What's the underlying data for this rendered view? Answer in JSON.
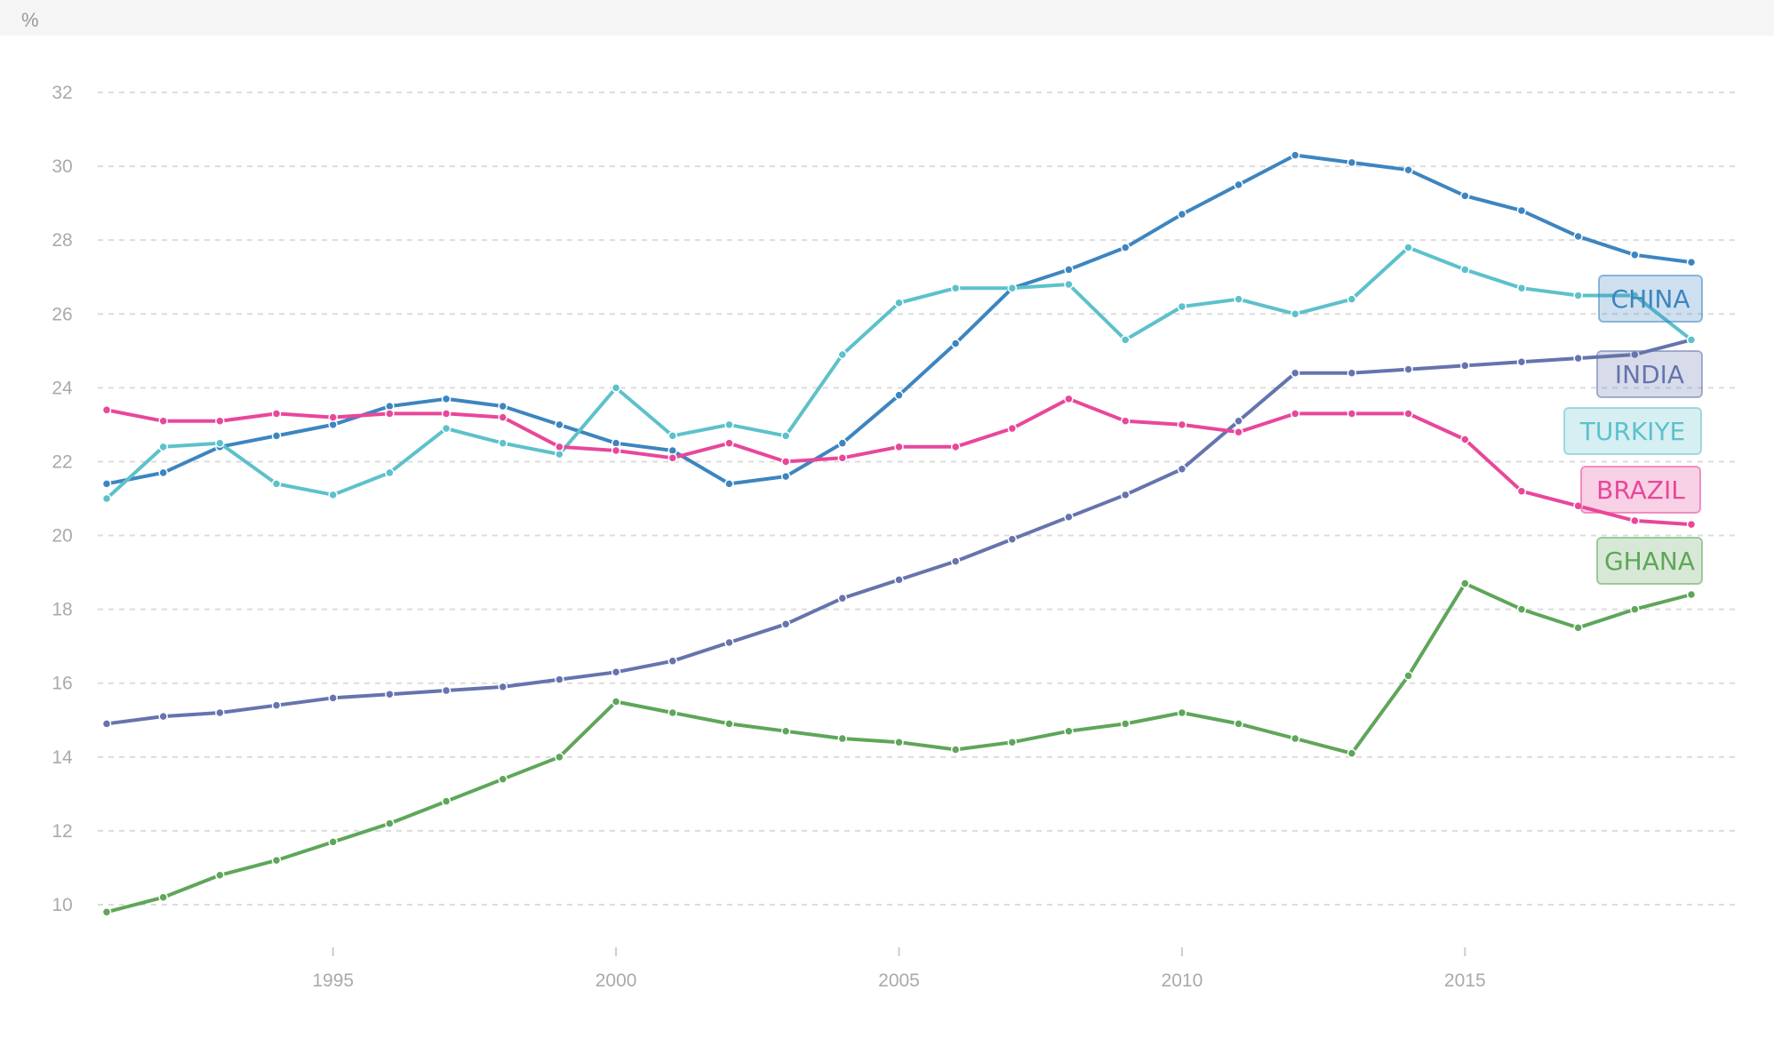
{
  "chart_data": {
    "type": "line",
    "title": "",
    "xlabel": "",
    "ylabel": "%",
    "xlim": [
      1991,
      2019
    ],
    "ylim": [
      9,
      33
    ],
    "x_ticks": [
      1995,
      2000,
      2005,
      2010,
      2015
    ],
    "y_ticks": [
      10,
      12,
      14,
      16,
      18,
      20,
      22,
      24,
      26,
      28,
      30,
      32
    ],
    "grid": true,
    "legend_position": "right",
    "x": [
      1991,
      1992,
      1993,
      1994,
      1995,
      1996,
      1997,
      1998,
      1999,
      2000,
      2001,
      2002,
      2003,
      2004,
      2005,
      2006,
      2007,
      2008,
      2009,
      2010,
      2011,
      2012,
      2013,
      2014,
      2015,
      2016,
      2017,
      2018,
      2019
    ],
    "series": [
      {
        "name": "CHINA",
        "color": "#3d85c0",
        "values": [
          21.4,
          21.7,
          22.4,
          22.7,
          23.0,
          23.5,
          23.7,
          23.5,
          23.0,
          22.5,
          22.3,
          21.4,
          21.6,
          22.5,
          23.8,
          25.2,
          26.7,
          27.2,
          27.8,
          28.7,
          29.5,
          30.3,
          30.1,
          29.9,
          29.2,
          28.8,
          28.1,
          27.6,
          27.4
        ]
      },
      {
        "name": "INDIA",
        "color": "#6574ad",
        "values": [
          14.9,
          15.1,
          15.2,
          15.4,
          15.6,
          15.7,
          15.8,
          15.9,
          16.1,
          16.3,
          16.6,
          17.1,
          17.6,
          18.3,
          18.8,
          19.3,
          19.9,
          20.5,
          21.1,
          21.8,
          23.1,
          24.4,
          24.4,
          24.5,
          24.6,
          24.7,
          24.8,
          24.9,
          25.3
        ]
      },
      {
        "name": "TURKIYE",
        "color": "#5cc1cb",
        "values": [
          21.0,
          22.4,
          22.5,
          21.4,
          21.1,
          21.7,
          22.9,
          22.5,
          22.2,
          24.0,
          22.7,
          23.0,
          22.7,
          24.9,
          26.3,
          26.7,
          26.7,
          26.8,
          25.3,
          26.2,
          26.4,
          26.0,
          26.4,
          27.8,
          27.2,
          26.7,
          26.5,
          26.5,
          25.3
        ]
      },
      {
        "name": "BRAZIL",
        "color": "#e8479a",
        "values": [
          23.4,
          23.1,
          23.1,
          23.3,
          23.2,
          23.3,
          23.3,
          23.2,
          22.4,
          22.3,
          22.1,
          22.5,
          22.0,
          22.1,
          22.4,
          22.4,
          22.9,
          23.7,
          23.1,
          23.0,
          22.8,
          23.3,
          23.3,
          23.3,
          22.6,
          21.2,
          20.8,
          20.4,
          20.3
        ]
      },
      {
        "name": "GHANA",
        "color": "#5ea65a",
        "values": [
          9.8,
          10.2,
          10.8,
          11.2,
          11.7,
          12.2,
          12.8,
          13.4,
          14.0,
          15.5,
          15.2,
          14.9,
          14.7,
          14.5,
          14.4,
          14.2,
          14.4,
          14.7,
          14.9,
          15.2,
          14.9,
          14.5,
          14.1,
          16.2,
          18.7,
          18.0,
          17.5,
          18.0,
          18.4
        ]
      }
    ]
  }
}
